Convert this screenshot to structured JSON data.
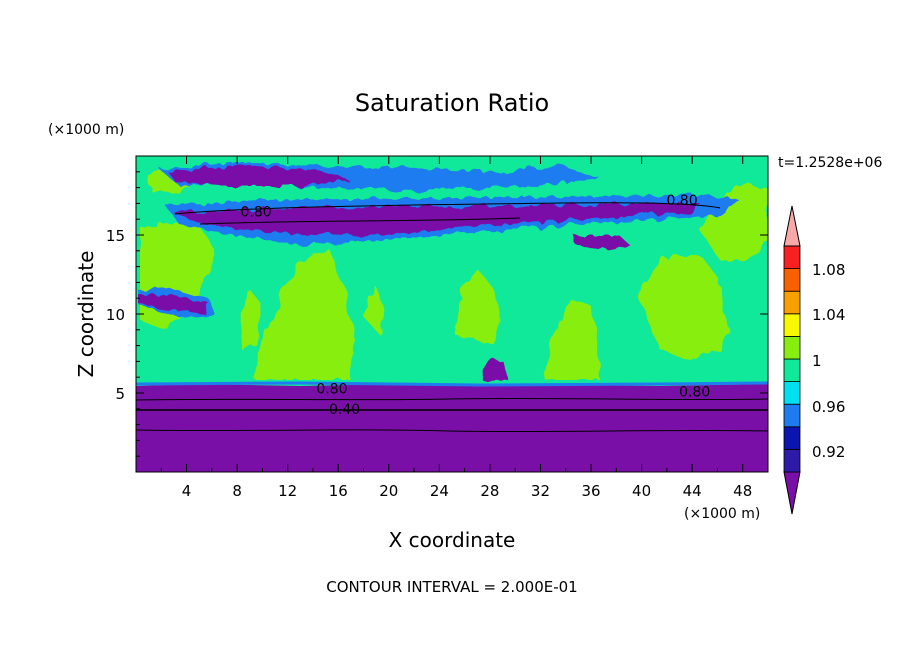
{
  "chart_data": {
    "type": "heatmap",
    "title": "Saturation Ratio",
    "xlabel": "X coordinate",
    "ylabel": "Z coordinate",
    "x_unit_label": "(×1000 m)",
    "y_unit_label": "(×1000 m)",
    "time_label": "t=1.2528e+06",
    "footer": "CONTOUR INTERVAL = 2.000E-01",
    "xlim": [
      0,
      50
    ],
    "ylim": [
      0,
      20
    ],
    "x_ticks": [
      "4",
      "8",
      "12",
      "16",
      "20",
      "24",
      "28",
      "32",
      "36",
      "40",
      "44",
      "48"
    ],
    "y_ticks": [
      "5",
      "10",
      "15"
    ],
    "contour_labels": [
      {
        "text": "0.80",
        "x": 9.5,
        "y": 16.5
      },
      {
        "text": "0.80",
        "x": 43.2,
        "y": 17.2
      },
      {
        "text": "0.80",
        "x": 15.5,
        "y": 5.3
      },
      {
        "text": "0.40",
        "x": 16.5,
        "y": 4.0
      },
      {
        "text": "0.80",
        "x": 44.2,
        "y": 5.1
      }
    ],
    "colorbar": {
      "labels": [
        "1.08",
        "1.04",
        "1",
        "0.96",
        "0.92"
      ],
      "colors": [
        "#7a0fa8",
        "#2d1aa6",
        "#0b14b0",
        "#1e7cf0",
        "#00e0f0",
        "#10e89a",
        "#88ee10",
        "#f8f800",
        "#f8a000",
        "#f86000",
        "#f82020",
        "#f8a8a8"
      ]
    }
  }
}
